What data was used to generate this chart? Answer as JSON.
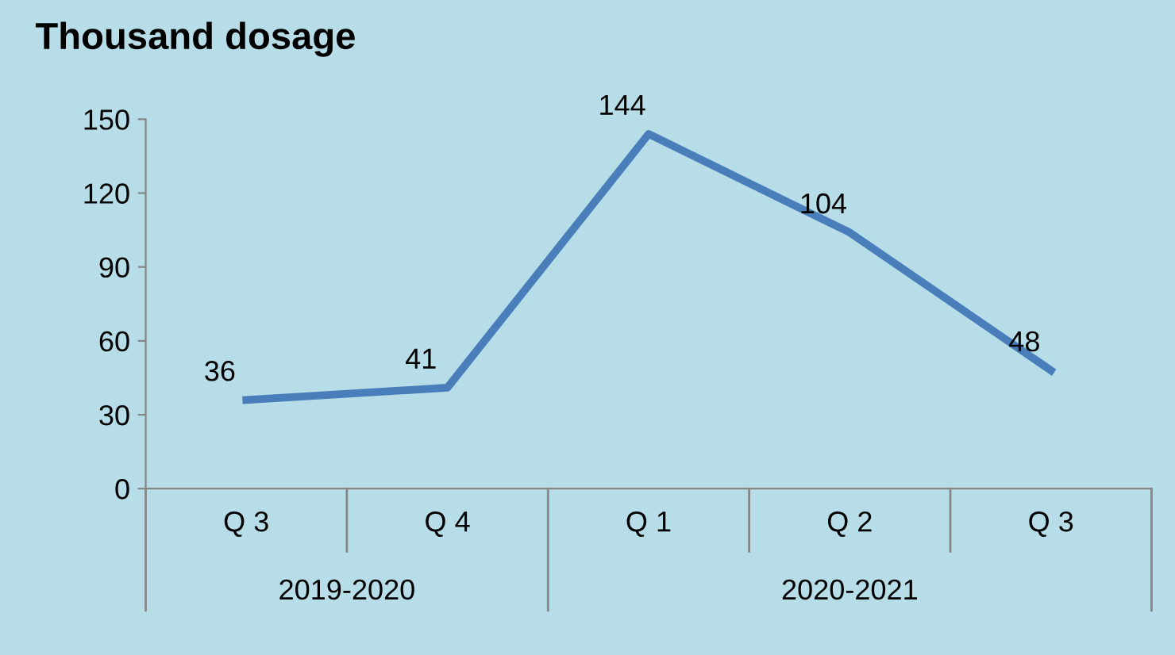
{
  "chart_data": {
    "type": "line",
    "title": "Thousand dosage",
    "categories": [
      "Q 3",
      "Q 4",
      "Q 1",
      "Q 2",
      "Q 3"
    ],
    "series": [
      {
        "color": "#4a7ebb",
        "values": [
          36,
          41,
          144,
          104,
          48
        ]
      }
    ],
    "ylim": [
      0,
      150
    ],
    "yticks": [
      0,
      30,
      60,
      90,
      120,
      150
    ],
    "annotations": [
      "2019-2020",
      "2020-2021"
    ],
    "data_labels": true,
    "grid": false,
    "legend": false,
    "marker": "none",
    "line_style": "solid"
  }
}
